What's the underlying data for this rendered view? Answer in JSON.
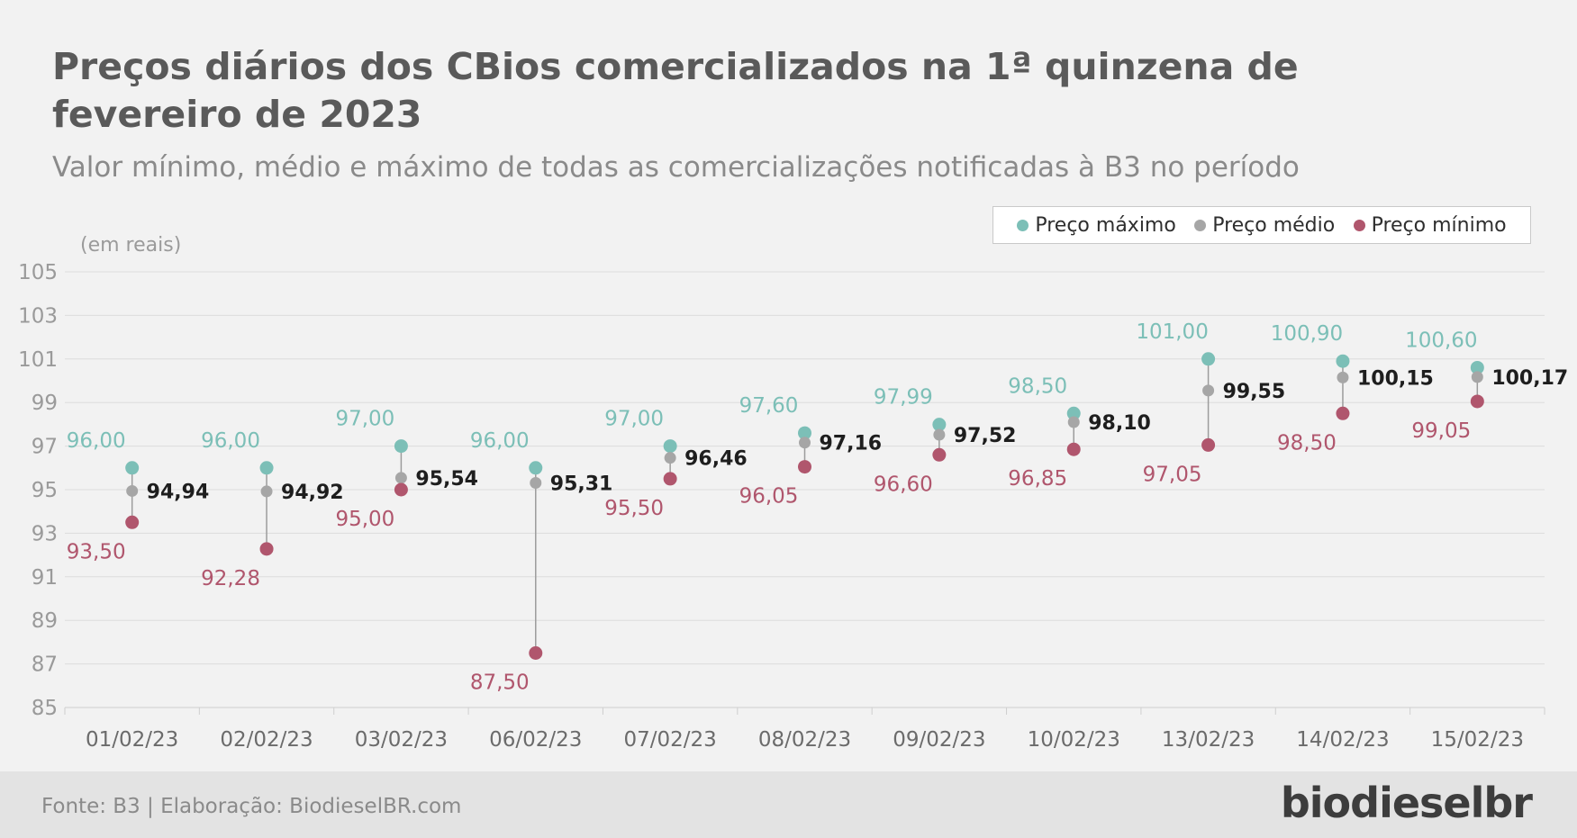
{
  "title": "Preços diários dos CBios comercializados  na 1ª quinzena de fevereiro de 2023",
  "subtitle": "Valor mínimo, médio e máximo de todas as comercializações notificadas à B3 no período",
  "footer": {
    "source": "Fonte: B3 | Elaboração: BiodieselBR.com",
    "logo": "biodieselbr"
  },
  "colors": {
    "max": "#7cbfb7",
    "avg": "#a6a6a6",
    "min": "#b0566d",
    "avg_label": "#1e1e1e",
    "grid": "#dcdcdc",
    "axis_text": "#9a9a9a"
  },
  "chart_data": {
    "type": "dumbbell",
    "ylabel": "(em reais)",
    "ylim": [
      85,
      105
    ],
    "yticks": [
      85,
      87,
      89,
      91,
      93,
      95,
      97,
      99,
      101,
      103,
      105
    ],
    "grid": true,
    "legend_position": "top-right",
    "categories": [
      "01/02/23",
      "02/02/23",
      "03/02/23",
      "06/02/23",
      "07/02/23",
      "08/02/23",
      "09/02/23",
      "10/02/23",
      "13/02/23",
      "14/02/23",
      "15/02/23"
    ],
    "series": [
      {
        "key": "max",
        "name": "Preço máximo",
        "values": [
          96.0,
          96.0,
          97.0,
          96.0,
          97.0,
          97.6,
          97.99,
          98.5,
          101.0,
          100.9,
          100.6
        ],
        "labels": [
          "96,00",
          "96,00",
          "97,00",
          "96,00",
          "97,00",
          "97,60",
          "97,99",
          "98,50",
          "101,00",
          "100,90",
          "100,60"
        ]
      },
      {
        "key": "avg",
        "name": "Preço médio",
        "values": [
          94.94,
          94.92,
          95.54,
          95.31,
          96.46,
          97.16,
          97.52,
          98.1,
          99.55,
          100.15,
          100.17
        ],
        "labels": [
          "94,94",
          "94,92",
          "95,54",
          "95,31",
          "96,46",
          "97,16",
          "97,52",
          "98,10",
          "99,55",
          "100,15",
          "100,17"
        ]
      },
      {
        "key": "min",
        "name": "Preço mínimo",
        "values": [
          93.5,
          92.28,
          95.0,
          87.5,
          95.5,
          96.05,
          96.6,
          96.85,
          97.05,
          98.5,
          99.05
        ],
        "labels": [
          "93,50",
          "92,28",
          "95,00",
          "87,50",
          "95,50",
          "96,05",
          "96,60",
          "96,85",
          "97,05",
          "98,50",
          "99,05"
        ]
      }
    ]
  }
}
